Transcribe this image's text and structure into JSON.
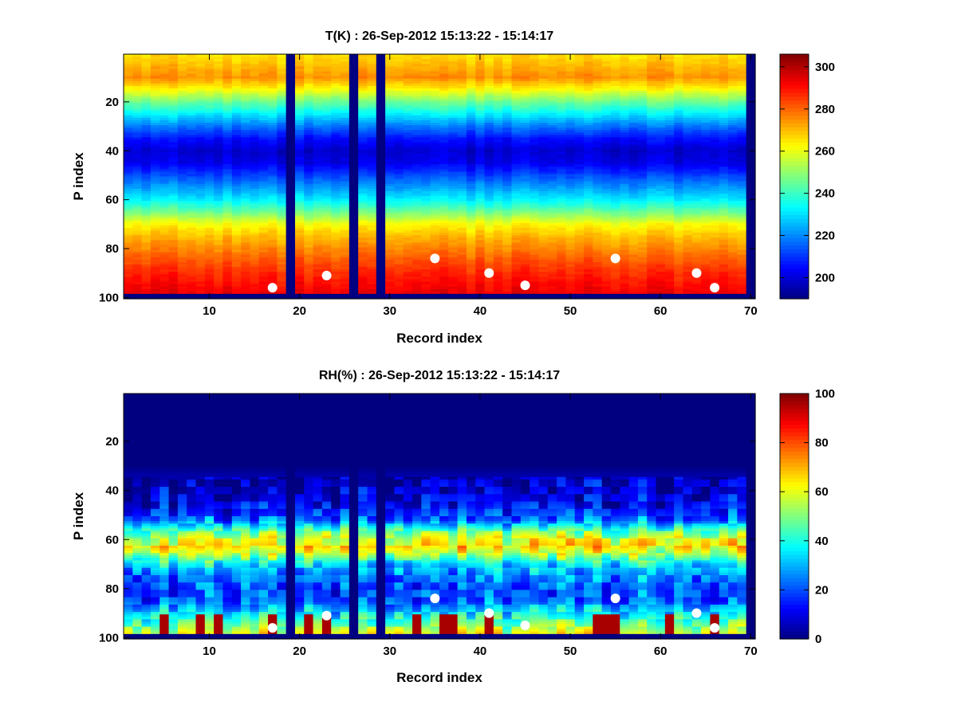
{
  "chart_data": [
    {
      "type": "heatmap",
      "title": "T(K) : 26-Sep-2012 15:13:22 - 15:14:17",
      "xlabel": "Record index",
      "ylabel": "P index",
      "xlim": [
        0.5,
        70.5
      ],
      "ylim": [
        0.5,
        100.5
      ],
      "y_reversed": true,
      "xticks": [
        10,
        20,
        30,
        40,
        50,
        60,
        70
      ],
      "yticks": [
        20,
        40,
        60,
        80,
        100
      ],
      "colormap": "jet",
      "clim": [
        190,
        306
      ],
      "colorbar_ticks": [
        200,
        220,
        240,
        260,
        280,
        300
      ],
      "records": 70,
      "levels": 100,
      "missing_records": [
        19,
        26,
        29,
        70
      ],
      "valid_levels": [
        1,
        98
      ],
      "profile": {
        "description_levels": [
          1,
          5,
          10,
          15,
          20,
          25,
          30,
          35,
          40,
          45,
          50,
          55,
          60,
          65,
          70,
          75,
          80,
          85,
          90,
          95,
          98
        ],
        "values": [
          266,
          270,
          275,
          262,
          246,
          232,
          218,
          206,
          199,
          202,
          212,
          222,
          232,
          246,
          262,
          270,
          276,
          282,
          287,
          291,
          293
        ]
      },
      "markers": [
        {
          "x": 17,
          "y": 96
        },
        {
          "x": 23,
          "y": 91
        },
        {
          "x": 35,
          "y": 84
        },
        {
          "x": 41,
          "y": 90
        },
        {
          "x": 45,
          "y": 95
        },
        {
          "x": 55,
          "y": 84
        },
        {
          "x": 64,
          "y": 90
        },
        {
          "x": 66,
          "y": 96
        }
      ]
    },
    {
      "type": "heatmap",
      "title": "RH(%) : 26-Sep-2012 15:13:22 - 15:14:17",
      "xlabel": "Record index",
      "ylabel": "P index",
      "xlim": [
        0.5,
        70.5
      ],
      "ylim": [
        0.5,
        100.5
      ],
      "y_reversed": true,
      "xticks": [
        10,
        20,
        30,
        40,
        50,
        60,
        70
      ],
      "yticks": [
        20,
        40,
        60,
        80,
        100
      ],
      "colormap": "jet",
      "clim": [
        0,
        100
      ],
      "colorbar_ticks": [
        0,
        20,
        40,
        60,
        80,
        100
      ],
      "records": 70,
      "levels": 100,
      "missing_records": [
        19,
        26,
        29,
        70
      ],
      "valid_levels": [
        1,
        98
      ],
      "profile": {
        "description_levels": [
          1,
          30,
          36,
          45,
          52,
          56,
          60,
          63,
          66,
          70,
          75,
          80,
          85,
          90,
          95,
          98
        ],
        "values": [
          0,
          0,
          6,
          12,
          22,
          45,
          60,
          65,
          55,
          35,
          25,
          20,
          22,
          35,
          50,
          60
        ]
      },
      "saturated_records": [
        5,
        9,
        11,
        17,
        21,
        23,
        33,
        36,
        37,
        41,
        53,
        54,
        55,
        61,
        66
      ],
      "markers": [
        {
          "x": 17,
          "y": 96
        },
        {
          "x": 23,
          "y": 91
        },
        {
          "x": 35,
          "y": 84
        },
        {
          "x": 41,
          "y": 90
        },
        {
          "x": 45,
          "y": 95
        },
        {
          "x": 55,
          "y": 84
        },
        {
          "x": 64,
          "y": 90
        },
        {
          "x": 66,
          "y": 96
        }
      ]
    }
  ]
}
